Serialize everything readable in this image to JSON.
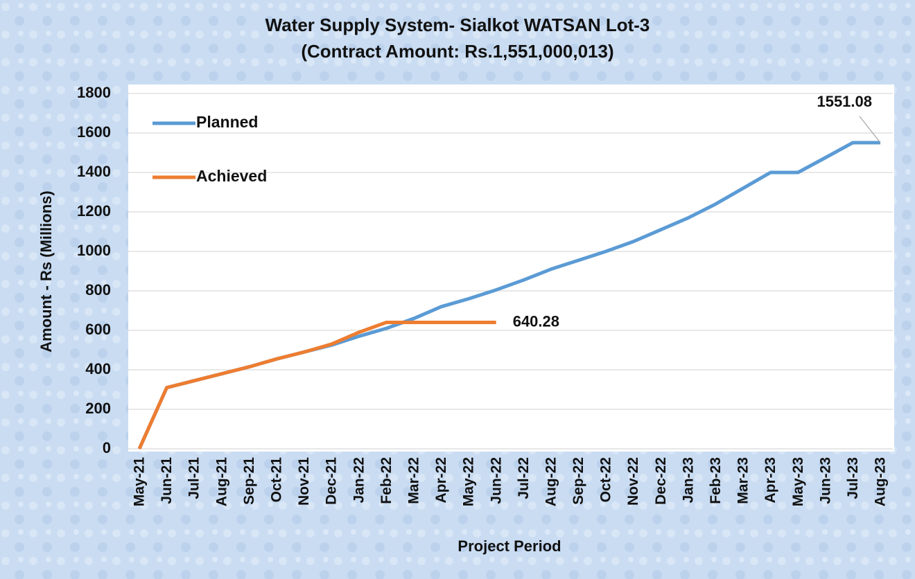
{
  "chart_data": {
    "type": "line",
    "title": "Water Supply System- Sialkot WATSAN Lot-3",
    "subtitle": "(Contract Amount: Rs.1,551,000,013)",
    "x_label": "Project Period",
    "y_label": "Amount - Rs (Millions)",
    "categories": [
      "May-21",
      "Jun-21",
      "Jul-21",
      "Aug-21",
      "Sep-21",
      "Oct-21",
      "Nov-21",
      "Dec-21",
      "Jan-22",
      "Feb-22",
      "Mar-22",
      "Apr-22",
      "May-22",
      "Jun-22",
      "Jul-22",
      "Aug-22",
      "Sep-22",
      "Oct-22",
      "Nov-22",
      "Dec-22",
      "Jan-23",
      "Feb-23",
      "Mar-23",
      "Apr-23",
      "May-23",
      "Jun-23",
      "Jul-23",
      "Aug-23"
    ],
    "series": [
      {
        "name": "Planned",
        "color": "#5b9bd5",
        "values": [
          0,
          310,
          345,
          380,
          415,
          455,
          490,
          525,
          570,
          610,
          660,
          720,
          760,
          805,
          855,
          910,
          955,
          1000,
          1050,
          1110,
          1170,
          1240,
          1320,
          1400,
          1400,
          1475,
          1551.08,
          1551.08
        ]
      },
      {
        "name": "Achieved",
        "color": "#ed7d31",
        "values": [
          0,
          310,
          345,
          380,
          415,
          455,
          490,
          530,
          590,
          640.28,
          640.28,
          640.28,
          640.28,
          640.28,
          null,
          null,
          null,
          null,
          null,
          null,
          null,
          null,
          null,
          null,
          null,
          null,
          null,
          null
        ]
      }
    ],
    "ylim": [
      0,
      1800
    ],
    "yticks": [
      0,
      200,
      400,
      600,
      800,
      1000,
      1200,
      1400,
      1600,
      1800
    ],
    "grid": true,
    "legend": "upper left"
  }
}
